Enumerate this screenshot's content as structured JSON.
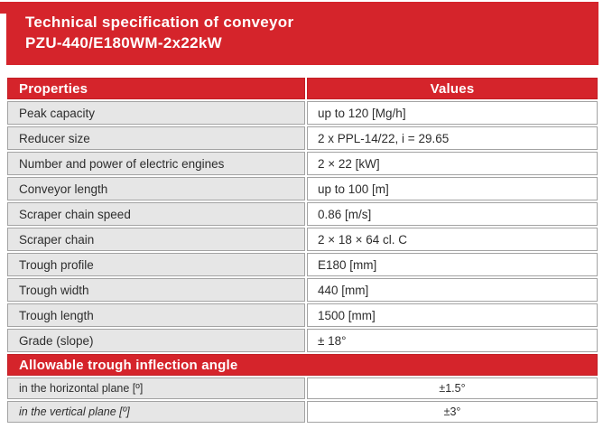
{
  "banner": {
    "title_line1": "Technical specification of conveyor",
    "title_line2": "PZU-440/E180WM-2x22kW"
  },
  "table": {
    "headers": {
      "properties": "Properties",
      "values": "Values"
    },
    "rows": [
      {
        "property": "Peak capacity",
        "value": "up to 120 [Mg/h]"
      },
      {
        "property": "Reducer size",
        "value": "2 x PPL-14/22, i = 29.65"
      },
      {
        "property": "Number and power of electric engines",
        "value": "2 × 22 [kW]"
      },
      {
        "property": "Conveyor length",
        "value": "up to 100 [m]"
      },
      {
        "property": "Scraper chain speed",
        "value": "0.86 [m/s]"
      },
      {
        "property": "Scraper chain",
        "value": "2 × 18 × 64 cl. C"
      },
      {
        "property": "Trough profile",
        "value": "E180 [mm]"
      },
      {
        "property": "Trough width",
        "value": "440 [mm]"
      },
      {
        "property": "Trough length",
        "value": "1500 [mm]"
      },
      {
        "property": "Grade (slope)",
        "value": "± 18°"
      }
    ],
    "section": {
      "title": "Allowable trough inflection angle",
      "rows": [
        {
          "property": "in the horizontal plane [º]",
          "value": "±1.5°"
        },
        {
          "property": "in the vertical plane [º]",
          "value": "±3°"
        }
      ]
    }
  },
  "colors": {
    "brand_red": "#d5242b",
    "row_gray": "#e6e6e6",
    "border_gray": "#a3a3a3"
  }
}
